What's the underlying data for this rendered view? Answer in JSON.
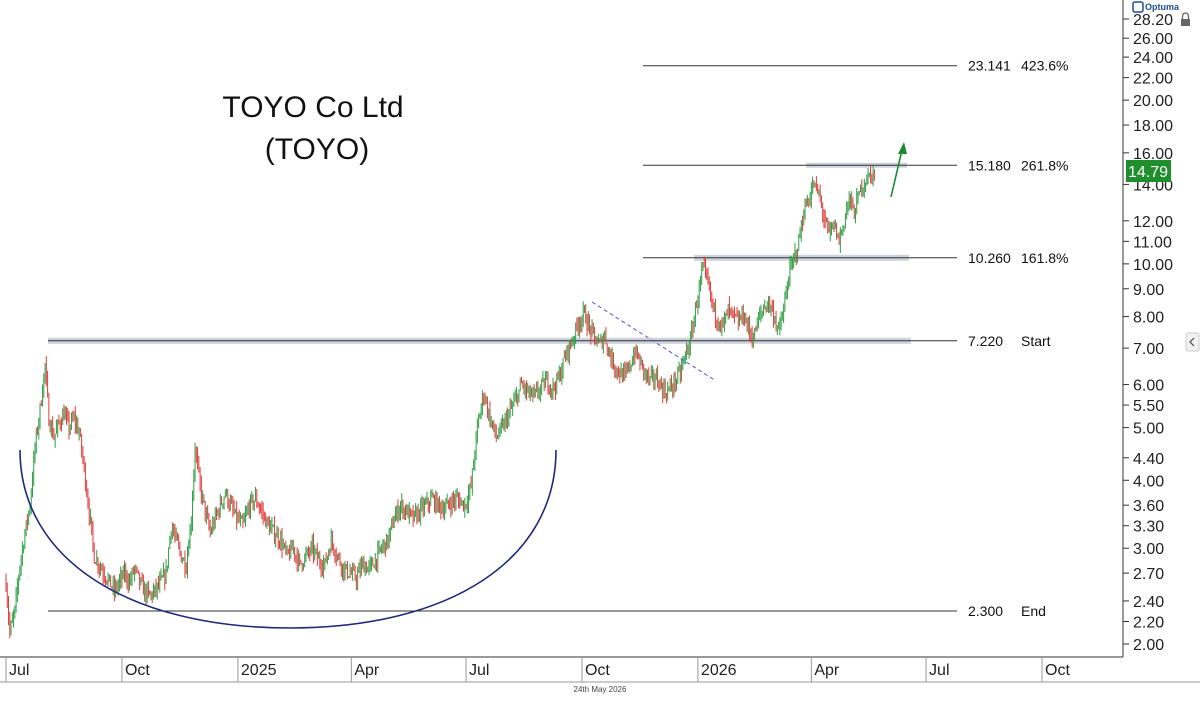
{
  "chart_data": {
    "type": "line",
    "title_line1": "TOYO Co Ltd",
    "title_line2": "(TOYO)",
    "ylabel": "",
    "xlabel": "",
    "y_scale": "log",
    "ylim": [
      1.9,
      28.2
    ],
    "y_ticks": [
      "28.20",
      "26.00",
      "24.00",
      "22.00",
      "20.00",
      "18.00",
      "16.00",
      "14.00",
      "12.00",
      "11.00",
      "10.00",
      "9.00",
      "8.00",
      "7.00",
      "6.00",
      "5.50",
      "5.00",
      "4.40",
      "4.00",
      "3.60",
      "3.30",
      "3.00",
      "2.70",
      "2.40",
      "2.20",
      "2.00"
    ],
    "x_ticks": [
      "Jul",
      "Oct",
      "2025",
      "Apr",
      "Jul",
      "Oct",
      "2026",
      "Apr",
      "Jul",
      "Oct"
    ],
    "last_price": "14.79",
    "levels": [
      {
        "value": "23.141",
        "pct": "423.6%"
      },
      {
        "value": "15.180",
        "pct": "261.8%"
      },
      {
        "value": "10.260",
        "pct": "161.8%"
      },
      {
        "value": "7.220",
        "pct": "Start"
      },
      {
        "value": "2.300",
        "pct": "End"
      }
    ],
    "series": [
      {
        "values": [
          [
            "2024-07-01",
            2.6
          ],
          [
            "2024-07-04",
            2.1
          ],
          [
            "2024-07-08",
            2.3
          ],
          [
            "2024-07-12",
            2.8
          ],
          [
            "2024-07-16",
            3.2
          ],
          [
            "2024-07-20",
            3.6
          ],
          [
            "2024-07-24",
            4.6
          ],
          [
            "2024-07-28",
            5.4
          ],
          [
            "2024-08-01",
            6.5
          ],
          [
            "2024-08-04",
            5.2
          ],
          [
            "2024-08-08",
            4.8
          ],
          [
            "2024-08-12",
            5.1
          ],
          [
            "2024-08-16",
            5.3
          ],
          [
            "2024-08-20",
            5.0
          ],
          [
            "2024-08-24",
            5.2
          ],
          [
            "2024-08-28",
            4.9
          ],
          [
            "2024-09-01",
            4.2
          ],
          [
            "2024-09-05",
            3.5
          ],
          [
            "2024-09-09",
            2.9
          ],
          [
            "2024-09-13",
            2.8
          ],
          [
            "2024-09-17",
            2.7
          ],
          [
            "2024-09-21",
            2.6
          ],
          [
            "2024-09-25",
            2.5
          ],
          [
            "2024-09-29",
            2.6
          ],
          [
            "2024-10-03",
            2.7
          ],
          [
            "2024-10-07",
            2.6
          ],
          [
            "2024-10-11",
            2.75
          ],
          [
            "2024-10-15",
            2.6
          ],
          [
            "2024-10-19",
            2.5
          ],
          [
            "2024-10-23",
            2.45
          ],
          [
            "2024-10-27",
            2.5
          ],
          [
            "2024-11-01",
            2.6
          ],
          [
            "2024-11-05",
            2.7
          ],
          [
            "2024-11-09",
            3.3
          ],
          [
            "2024-11-13",
            3.1
          ],
          [
            "2024-11-17",
            2.9
          ],
          [
            "2024-11-21",
            2.8
          ],
          [
            "2024-11-25",
            3.4
          ],
          [
            "2024-11-28",
            4.6
          ],
          [
            "2024-12-02",
            3.9
          ],
          [
            "2024-12-06",
            3.5
          ],
          [
            "2024-12-10",
            3.2
          ],
          [
            "2024-12-14",
            3.4
          ],
          [
            "2024-12-18",
            3.6
          ],
          [
            "2024-12-22",
            3.8
          ],
          [
            "2024-12-26",
            3.6
          ],
          [
            "2024-12-31",
            3.4
          ],
          [
            "2025-01-05",
            3.3
          ],
          [
            "2025-01-10",
            3.6
          ],
          [
            "2025-01-15",
            3.7
          ],
          [
            "2025-01-20",
            3.5
          ],
          [
            "2025-01-25",
            3.3
          ],
          [
            "2025-01-30",
            3.2
          ],
          [
            "2025-02-04",
            3.1
          ],
          [
            "2025-02-09",
            2.9
          ],
          [
            "2025-02-14",
            3.0
          ],
          [
            "2025-02-19",
            2.8
          ],
          [
            "2025-02-24",
            2.9
          ],
          [
            "2025-03-01",
            3.0
          ],
          [
            "2025-03-06",
            2.85
          ],
          [
            "2025-03-11",
            2.8
          ],
          [
            "2025-03-16",
            3.1
          ],
          [
            "2025-03-21",
            2.9
          ],
          [
            "2025-03-26",
            2.75
          ],
          [
            "2025-03-31",
            2.7
          ],
          [
            "2025-04-05",
            2.65
          ],
          [
            "2025-04-10",
            2.8
          ],
          [
            "2025-04-15",
            2.75
          ],
          [
            "2025-04-20",
            2.85
          ],
          [
            "2025-04-25",
            3.0
          ],
          [
            "2025-04-30",
            3.1
          ],
          [
            "2025-05-05",
            3.4
          ],
          [
            "2025-05-10",
            3.6
          ],
          [
            "2025-05-15",
            3.5
          ],
          [
            "2025-05-20",
            3.4
          ],
          [
            "2025-05-25",
            3.5
          ],
          [
            "2025-05-30",
            3.6
          ],
          [
            "2025-06-04",
            3.7
          ],
          [
            "2025-06-09",
            3.6
          ],
          [
            "2025-06-14",
            3.55
          ],
          [
            "2025-06-19",
            3.65
          ],
          [
            "2025-06-24",
            3.7
          ],
          [
            "2025-06-30",
            3.6
          ],
          [
            "2025-07-05",
            3.9
          ],
          [
            "2025-07-10",
            5.0
          ],
          [
            "2025-07-15",
            5.8
          ],
          [
            "2025-07-20",
            5.2
          ],
          [
            "2025-07-25",
            4.8
          ],
          [
            "2025-07-30",
            5.0
          ],
          [
            "2025-08-04",
            5.3
          ],
          [
            "2025-08-09",
            5.6
          ],
          [
            "2025-08-14",
            6.0
          ],
          [
            "2025-08-19",
            5.8
          ],
          [
            "2025-08-24",
            5.7
          ],
          [
            "2025-08-29",
            5.9
          ],
          [
            "2025-09-03",
            6.1
          ],
          [
            "2025-09-08",
            5.9
          ],
          [
            "2025-09-13",
            6.2
          ],
          [
            "2025-09-18",
            6.8
          ],
          [
            "2025-09-23",
            7.2
          ],
          [
            "2025-09-28",
            7.8
          ],
          [
            "2025-10-03",
            8.1
          ],
          [
            "2025-10-07",
            7.6
          ],
          [
            "2025-10-11",
            7.3
          ],
          [
            "2025-10-15",
            7.1
          ],
          [
            "2025-10-19",
            7.4
          ],
          [
            "2025-10-23",
            6.8
          ],
          [
            "2025-10-27",
            6.5
          ],
          [
            "2025-10-31",
            6.3
          ],
          [
            "2025-11-04",
            6.2
          ],
          [
            "2025-11-08",
            6.5
          ],
          [
            "2025-11-12",
            6.9
          ],
          [
            "2025-11-16",
            6.6
          ],
          [
            "2025-11-20",
            6.3
          ],
          [
            "2025-11-24",
            6.1
          ],
          [
            "2025-11-28",
            6.2
          ],
          [
            "2025-12-02",
            6.0
          ],
          [
            "2025-12-06",
            5.8
          ],
          [
            "2025-12-10",
            5.9
          ],
          [
            "2025-12-14",
            6.1
          ],
          [
            "2025-12-18",
            6.3
          ],
          [
            "2025-12-22",
            6.8
          ],
          [
            "2025-12-26",
            7.2
          ],
          [
            "2025-12-31",
            8.5
          ],
          [
            "2026-01-05",
            9.8
          ],
          [
            "2026-01-09",
            9.2
          ],
          [
            "2026-01-13",
            8.3
          ],
          [
            "2026-01-17",
            7.9
          ],
          [
            "2026-01-21",
            7.7
          ],
          [
            "2026-01-25",
            8.2
          ],
          [
            "2026-01-29",
            8.0
          ],
          [
            "2026-02-02",
            7.8
          ],
          [
            "2026-02-06",
            8.1
          ],
          [
            "2026-02-10",
            7.6
          ],
          [
            "2026-02-14",
            7.3
          ],
          [
            "2026-02-18",
            7.9
          ],
          [
            "2026-02-22",
            8.3
          ],
          [
            "2026-02-26",
            8.5
          ],
          [
            "2026-03-02",
            8.1
          ],
          [
            "2026-03-06",
            7.5
          ],
          [
            "2026-03-10",
            8.2
          ],
          [
            "2026-03-14",
            9.5
          ],
          [
            "2026-03-18",
            10.2
          ],
          [
            "2026-03-22",
            11.0
          ],
          [
            "2026-03-26",
            12.5
          ],
          [
            "2026-03-30",
            13.2
          ],
          [
            "2026-04-03",
            14.0
          ],
          [
            "2026-04-07",
            13.4
          ],
          [
            "2026-04-11",
            12.2
          ],
          [
            "2026-04-15",
            11.3
          ],
          [
            "2026-04-19",
            11.8
          ],
          [
            "2026-04-23",
            11.0
          ],
          [
            "2026-04-27",
            12.0
          ],
          [
            "2026-05-01",
            13.2
          ],
          [
            "2026-05-05",
            12.4
          ],
          [
            "2026-05-09",
            13.5
          ],
          [
            "2026-05-13",
            14.2
          ],
          [
            "2026-05-17",
            14.5
          ],
          [
            "2026-05-22",
            14.79
          ]
        ]
      }
    ],
    "footer_date": "24th May 2026",
    "logo_text": "Optuma",
    "colors": {
      "up": "#2e9e44",
      "down": "#e23b3b",
      "arc": "#1f2a7a",
      "trendline": "#5a55c7",
      "band": "#c4cbd6",
      "arrow": "#1b8a2e",
      "last_price_bg": "#1f8e2c"
    }
  }
}
